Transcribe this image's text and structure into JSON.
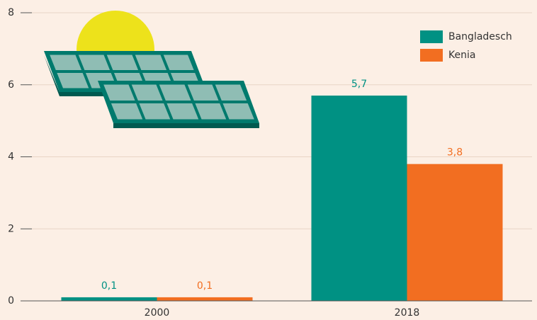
{
  "chart_data": {
    "type": "bar",
    "categories": [
      "2000",
      "2018"
    ],
    "series": [
      {
        "name": "Bangladesch",
        "color": "#009183",
        "values": [
          0.1,
          5.7
        ],
        "value_labels": [
          "0,1",
          "5,7"
        ]
      },
      {
        "name": "Kenia",
        "color": "#f26e21",
        "values": [
          0.1,
          3.8
        ],
        "value_labels": [
          "0,1",
          "3,8"
        ]
      }
    ],
    "ylim": [
      0,
      8
    ],
    "yticks": [
      0,
      2,
      4,
      6,
      8
    ],
    "grid": true
  }
}
